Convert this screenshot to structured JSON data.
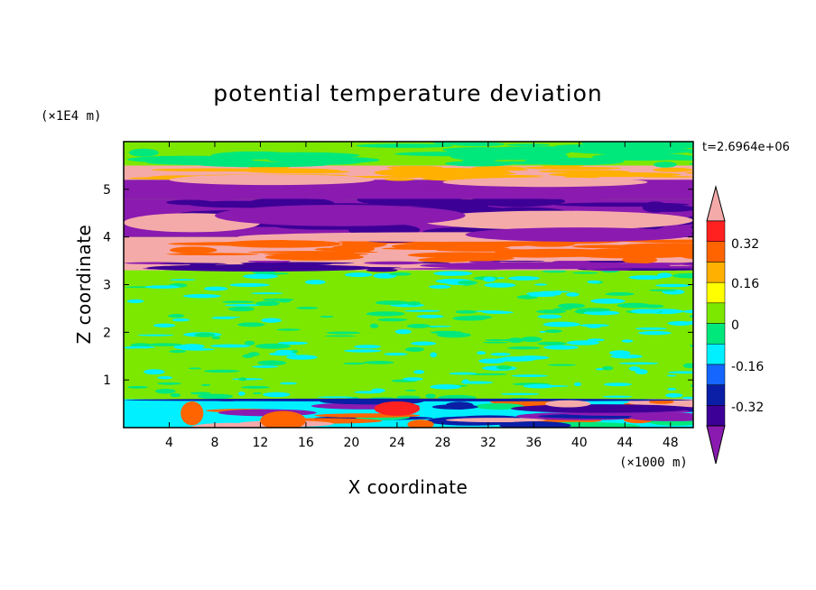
{
  "chart_data": {
    "type": "heatmap",
    "title": "potential temperature deviation",
    "xlabel": "X coordinate",
    "ylabel": "Z coordinate",
    "x_unit": "(×1000 m)",
    "y_unit": "(×1E4 m)",
    "time_label": "t=2.6964e+06",
    "xlim": [
      0,
      50
    ],
    "ylim": [
      0,
      6
    ],
    "x_ticks": [
      "4",
      "8",
      "12",
      "16",
      "20",
      "24",
      "28",
      "32",
      "36",
      "40",
      "44",
      "48"
    ],
    "y_ticks": [
      "1",
      "2",
      "3",
      "4",
      "5"
    ],
    "colorbar": {
      "tick_labels": [
        "0.32",
        "0.16",
        "0",
        "-0.16",
        "-0.32"
      ],
      "colors": [
        "#8a1ab0",
        "#3c0096",
        "#0a1ea6",
        "#1466ff",
        "#00f0ff",
        "#00e87c",
        "#7ce800",
        "#ffff00",
        "#ffb000",
        "#ff6400",
        "#ff2020",
        "#f5aaaa"
      ],
      "extends": "both"
    },
    "bands": [
      {
        "zmin": 0.0,
        "zmax": 0.6,
        "pattern": "mixed-low",
        "colors": [
          "#00f0ff",
          "#00e87c",
          "#0a1ea6",
          "#8a1ab0",
          "#ff6400",
          "#f5aaaa"
        ]
      },
      {
        "zmin": 0.6,
        "zmax": 3.3,
        "pattern": "turbulent-green",
        "colors": [
          "#7ce800",
          "#00e87c",
          "#00f0ff"
        ]
      },
      {
        "zmin": 3.3,
        "zmax": 3.5,
        "pattern": "shear",
        "colors": [
          "#f5aaaa",
          "#3c0096",
          "#8a1ab0"
        ]
      },
      {
        "zmin": 3.5,
        "zmax": 4.0,
        "pattern": "warm",
        "colors": [
          "#f5aaaa",
          "#ff6400"
        ]
      },
      {
        "zmin": 4.0,
        "zmax": 4.8,
        "pattern": "cold",
        "colors": [
          "#8a1ab0",
          "#3c0096"
        ]
      },
      {
        "zmin": 4.8,
        "zmax": 5.2,
        "pattern": "cold",
        "colors": [
          "#8a1ab0"
        ]
      },
      {
        "zmin": 5.2,
        "zmax": 5.5,
        "pattern": "warm",
        "colors": [
          "#f5aaaa",
          "#ffb000"
        ]
      },
      {
        "zmin": 5.5,
        "zmax": 6.0,
        "pattern": "calm",
        "colors": [
          "#7ce800",
          "#00e87c"
        ]
      }
    ]
  }
}
